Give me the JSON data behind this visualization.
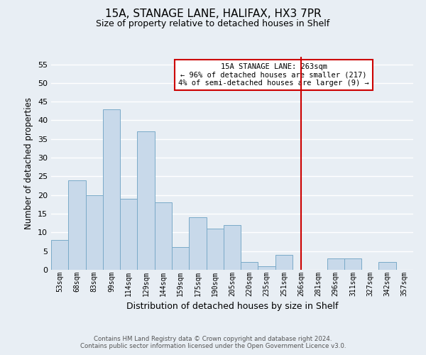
{
  "title": "15A, STANAGE LANE, HALIFAX, HX3 7PR",
  "subtitle": "Size of property relative to detached houses in Shelf",
  "xlabel": "Distribution of detached houses by size in Shelf",
  "ylabel": "Number of detached properties",
  "footer_line1": "Contains HM Land Registry data © Crown copyright and database right 2024.",
  "footer_line2": "Contains public sector information licensed under the Open Government Licence v3.0.",
  "bin_labels": [
    "53sqm",
    "68sqm",
    "83sqm",
    "99sqm",
    "114sqm",
    "129sqm",
    "144sqm",
    "159sqm",
    "175sqm",
    "190sqm",
    "205sqm",
    "220sqm",
    "235sqm",
    "251sqm",
    "266sqm",
    "281sqm",
    "296sqm",
    "311sqm",
    "327sqm",
    "342sqm",
    "357sqm"
  ],
  "bar_values": [
    8,
    24,
    20,
    43,
    19,
    37,
    18,
    6,
    14,
    11,
    12,
    2,
    1,
    4,
    0,
    0,
    3,
    3,
    0,
    2,
    0
  ],
  "bar_color": "#c8d9ea",
  "bar_edge_color": "#7aaac8",
  "ylim": [
    0,
    57
  ],
  "yticks": [
    0,
    5,
    10,
    15,
    20,
    25,
    30,
    35,
    40,
    45,
    50,
    55
  ],
  "vline_x_index": 14,
  "vline_color": "#cc0000",
  "annotation_title": "15A STANAGE LANE: 263sqm",
  "annotation_line1": "← 96% of detached houses are smaller (217)",
  "annotation_line2": "4% of semi-detached houses are larger (9) →",
  "annotation_box_color": "#ffffff",
  "annotation_box_edge_color": "#cc0000",
  "background_color": "#e8eef4",
  "plot_bg_color": "#e8eef4",
  "grid_color": "#ffffff",
  "title_fontsize": 11,
  "subtitle_fontsize": 9
}
